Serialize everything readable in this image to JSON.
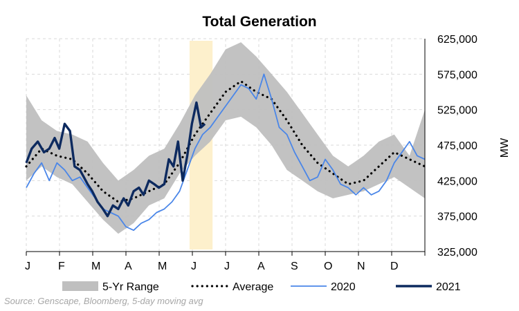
{
  "chart_data": {
    "type": "line",
    "title": "Total Generation",
    "ylabel": "MW",
    "ylim": [
      325000,
      625000
    ],
    "y_ticks": [
      325000,
      375000,
      425000,
      475000,
      525000,
      575000,
      625000
    ],
    "y_tick_labels": [
      "325,000",
      "375,000",
      "425,000",
      "475,000",
      "525,000",
      "575,000",
      "625,000"
    ],
    "x_ticks": [
      "J",
      "F",
      "M",
      "A",
      "M",
      "J",
      "J",
      "A",
      "S",
      "O",
      "N",
      "D"
    ],
    "x_domain_weeks": [
      0,
      52
    ],
    "grid": true,
    "highlight": {
      "from_week": 21.3,
      "to_week": 24.3,
      "color": "#fdf0cc"
    },
    "series": [
      {
        "name": "5-Yr Range",
        "kind": "band",
        "color": "#bfbfbf",
        "x": [
          0,
          2,
          4,
          6,
          8,
          10,
          12,
          14,
          16,
          18,
          20,
          22,
          24,
          26,
          28,
          30,
          32,
          34,
          36,
          38,
          40,
          42,
          44,
          46,
          48,
          50,
          52
        ],
        "low": [
          425000,
          445000,
          430000,
          420000,
          395000,
          370000,
          350000,
          365000,
          390000,
          400000,
          435000,
          460000,
          480000,
          510000,
          515000,
          500000,
          475000,
          440000,
          425000,
          410000,
          400000,
          405000,
          410000,
          420000,
          430000,
          415000,
          400000
        ],
        "high": [
          545000,
          510000,
          495000,
          490000,
          480000,
          450000,
          425000,
          440000,
          460000,
          470000,
          505000,
          545000,
          575000,
          610000,
          620000,
          600000,
          575000,
          550000,
          520000,
          490000,
          460000,
          445000,
          460000,
          480000,
          490000,
          460000,
          525000
        ]
      },
      {
        "name": "Average",
        "kind": "dotted",
        "color": "#000000",
        "x": [
          0,
          2,
          4,
          6,
          8,
          10,
          12,
          14,
          16,
          18,
          20,
          22,
          24,
          26,
          28,
          30,
          32,
          34,
          36,
          38,
          40,
          42,
          44,
          46,
          48,
          50,
          52
        ],
        "y": [
          445000,
          470000,
          460000,
          455000,
          435000,
          410000,
          395000,
          400000,
          410000,
          420000,
          450000,
          490000,
          520000,
          550000,
          565000,
          550000,
          540000,
          510000,
          475000,
          450000,
          435000,
          420000,
          425000,
          445000,
          465000,
          455000,
          445000
        ]
      },
      {
        "name": "2020",
        "kind": "line",
        "color": "#4a86e8",
        "x": [
          0,
          1,
          2,
          3,
          4,
          5,
          6,
          7,
          8,
          9,
          10,
          11,
          12,
          13,
          14,
          15,
          16,
          17,
          18,
          19,
          20,
          21,
          22,
          23,
          24,
          25,
          26,
          27,
          28,
          29,
          30,
          31,
          32,
          33,
          34,
          35,
          36,
          37,
          38,
          39,
          40,
          41,
          42,
          43,
          44,
          45,
          46,
          47,
          48,
          49,
          50,
          51,
          52
        ],
        "y": [
          415000,
          435000,
          450000,
          425000,
          450000,
          440000,
          425000,
          430000,
          415000,
          400000,
          385000,
          380000,
          375000,
          360000,
          355000,
          365000,
          370000,
          380000,
          385000,
          395000,
          410000,
          440000,
          470000,
          490000,
          500000,
          515000,
          530000,
          545000,
          560000,
          555000,
          540000,
          575000,
          540000,
          500000,
          490000,
          465000,
          445000,
          425000,
          430000,
          455000,
          440000,
          420000,
          415000,
          405000,
          415000,
          405000,
          410000,
          425000,
          450000,
          465000,
          480000,
          460000,
          455000
        ]
      },
      {
        "name": "2021",
        "kind": "line",
        "color": "#0d2a5f",
        "x": [
          0,
          0.7,
          1.5,
          2.3,
          3,
          3.7,
          4.3,
          5,
          5.7,
          6.3,
          7,
          7.5,
          8,
          8.6,
          9.3,
          10,
          10.6,
          11.3,
          12,
          12.7,
          13.3,
          14,
          14.7,
          15.3,
          16,
          16.7,
          17.3,
          18,
          18.6,
          19.2,
          19.8,
          20.4,
          21,
          21.6,
          22.2,
          22.8,
          23.3
        ],
        "y": [
          450000,
          470000,
          480000,
          465000,
          470000,
          485000,
          470000,
          505000,
          495000,
          445000,
          440000,
          430000,
          420000,
          410000,
          395000,
          385000,
          375000,
          390000,
          385000,
          400000,
          390000,
          410000,
          415000,
          405000,
          425000,
          420000,
          415000,
          420000,
          455000,
          445000,
          480000,
          425000,
          460000,
          505000,
          535000,
          500000,
          505000
        ]
      }
    ]
  },
  "source_note": "Source: Genscape, Bloomberg, 5-day moving avg"
}
